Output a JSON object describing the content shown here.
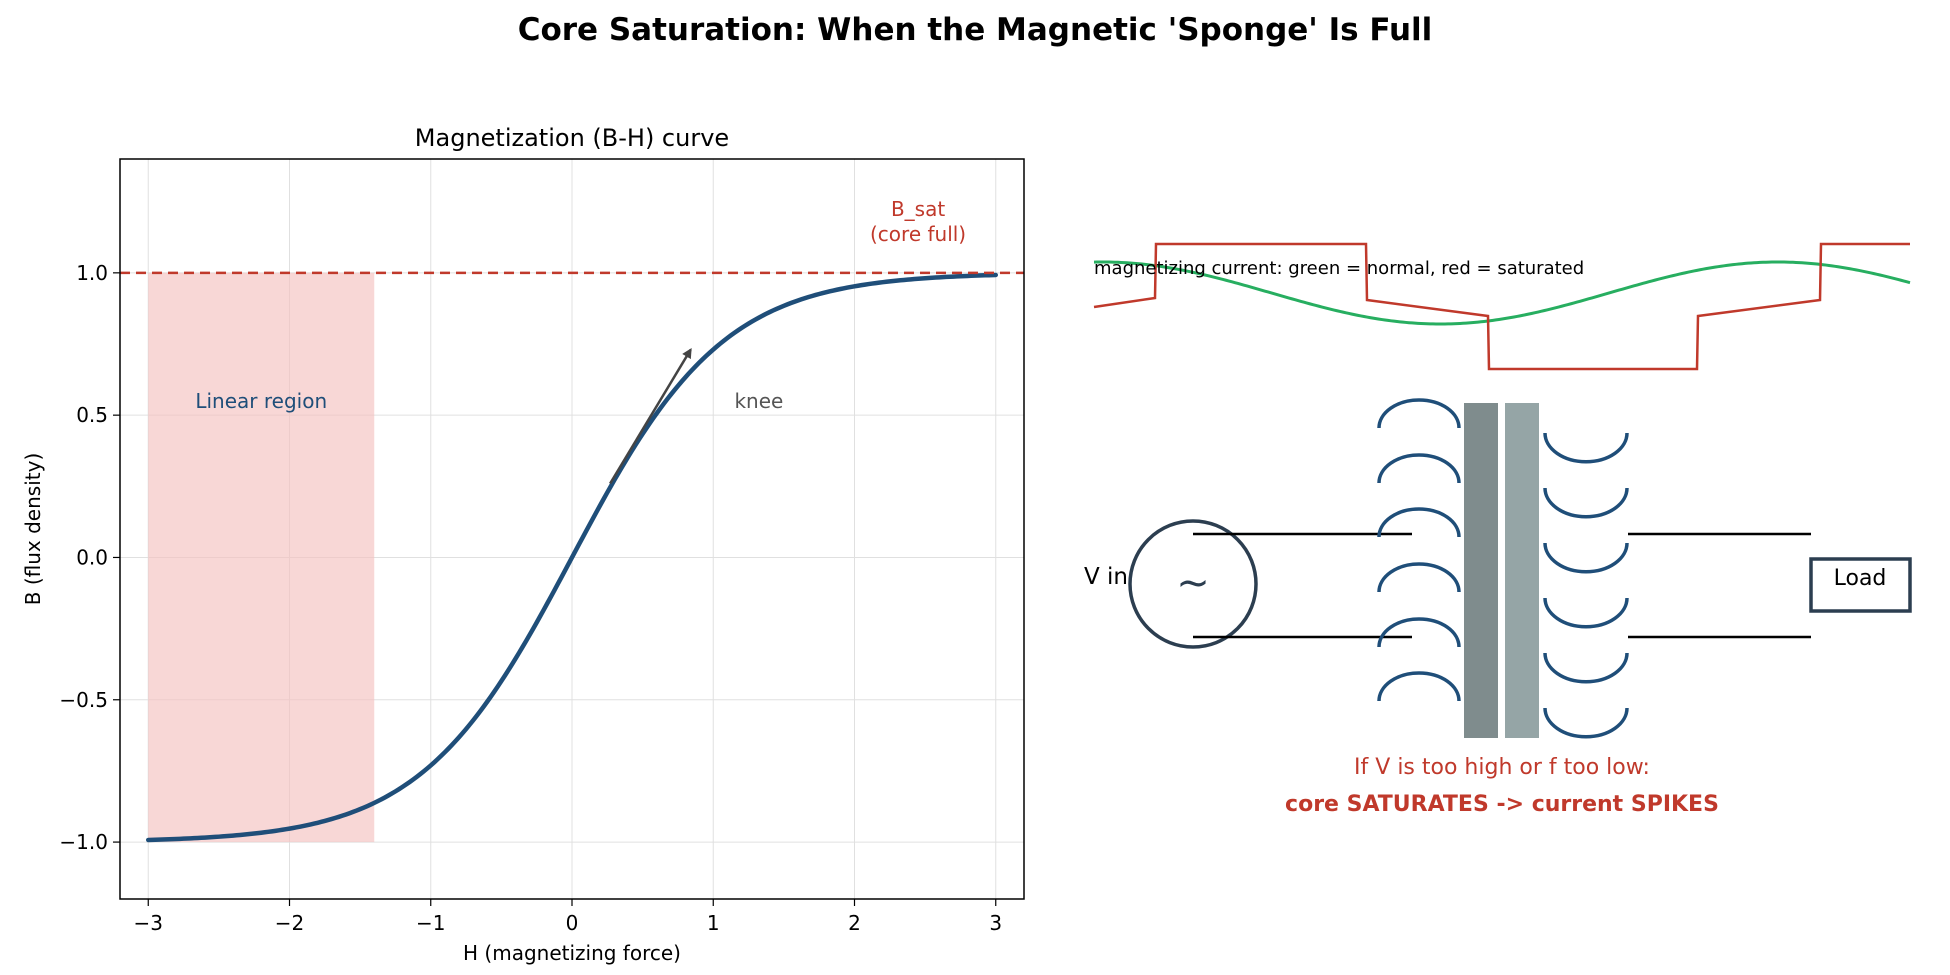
{
  "figure_title": "Core Saturation: When the Magnetic 'Sponge' Is Full",
  "colors": {
    "curve": "#1f4e79",
    "saturation": "#c0392b",
    "region_fill": "#f4c2c0",
    "normal_current": "#27ae60",
    "saturated_current": "#c0392b",
    "core_dark": "#7f8c8d",
    "core_light": "#95a5a6",
    "source_outline": "#2c3e50",
    "coil": "#1f4e79"
  },
  "chart_data": {
    "type": "line",
    "title": "Magnetization (B-H) curve",
    "xlabel": "H  (magnetizing force)",
    "ylabel": "B  (flux density)",
    "xlim": [
      -3.2,
      3.2
    ],
    "ylim": [
      -1.2,
      1.4
    ],
    "xticks": [
      -3,
      -2,
      -1,
      0,
      1,
      2,
      3
    ],
    "xtick_labels": [
      "−3",
      "−2",
      "−1",
      "0",
      "1",
      "2",
      "3"
    ],
    "yticks": [
      -1.0,
      -0.5,
      0.0,
      0.5,
      1.0
    ],
    "ytick_labels": [
      "−1.0",
      "−0.5",
      "0.0",
      "0.5",
      "1.0"
    ],
    "grid": true,
    "series": [
      {
        "x": [
          -3.0,
          -2.75,
          -2.5,
          -2.25,
          -2.0,
          -1.75,
          -1.5,
          -1.25,
          -1.0,
          -0.75,
          -0.5,
          -0.25,
          0.0,
          0.25,
          0.5,
          0.75,
          1.0,
          1.25,
          1.5,
          1.75,
          2.0,
          2.25,
          2.5,
          2.75,
          3.0
        ],
        "y": [
          -1.0,
          -1.0,
          -1.0,
          -0.999,
          -0.997,
          -0.992,
          -0.978,
          -0.943,
          -0.86,
          -0.694,
          -0.449,
          -0.233,
          0.0,
          0.233,
          0.449,
          0.694,
          0.86,
          0.943,
          0.978,
          0.992,
          0.997,
          0.999,
          1.0,
          1.0,
          1.0
        ]
      }
    ],
    "saturation_line": {
      "y": 1.0,
      "label": "B_sat\n(core full)"
    },
    "linear_region": {
      "x_range": [
        -3.0,
        -1.4
      ],
      "y_range": [
        -1.0,
        1.0
      ],
      "label": "Linear region"
    },
    "annotations": [
      {
        "text": "knee",
        "x": 1.15,
        "y": 0.55,
        "arrow_from": [
          0.27,
          0.26
        ],
        "arrow_to": [
          0.84,
          0.73
        ]
      }
    ]
  },
  "diagram": {
    "waveform_caption": "magnetizing current:  green = normal,  red = saturated",
    "source_label": "V in",
    "source_symbol": "~",
    "load_label": "Load",
    "warning_line1": "If V is too high or f too low:",
    "warning_line2": "core SATURATES  ->  current SPIKES"
  }
}
